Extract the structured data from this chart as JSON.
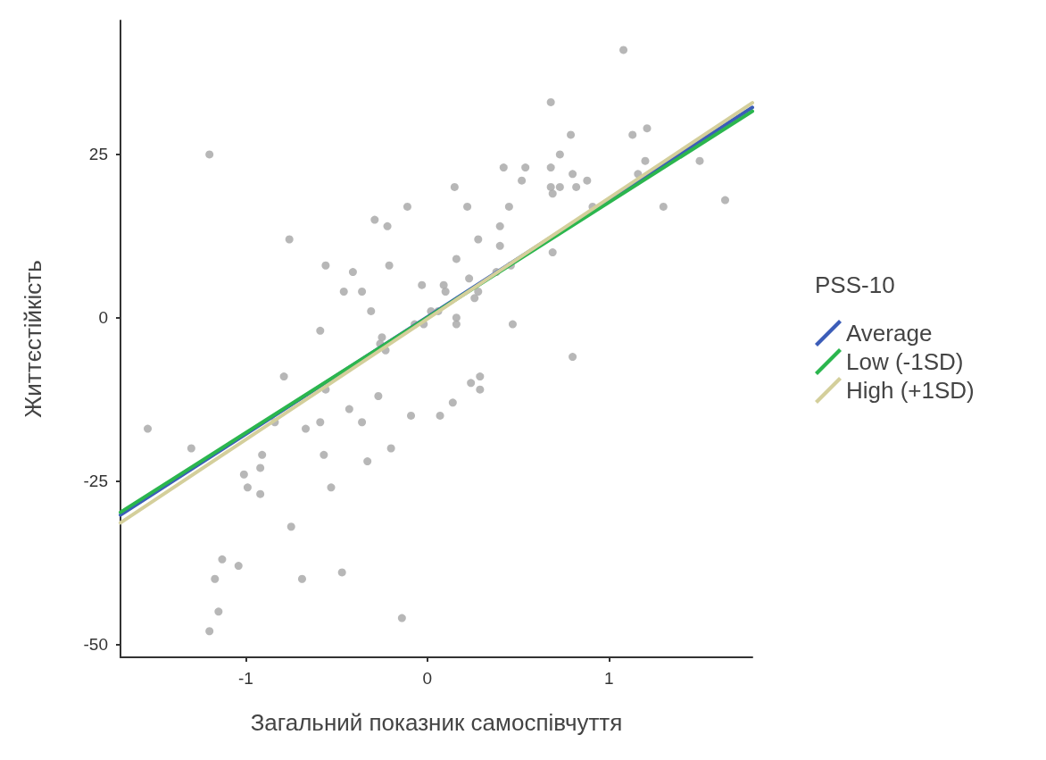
{
  "chart_data": {
    "type": "scatter",
    "xlabel": "Загальний показник самоспівчуття",
    "ylabel": "Життєстійкість",
    "legend_title": "PSS-10",
    "legend": "right",
    "grid": false,
    "xlim": [
      -1.69,
      1.79
    ],
    "ylim": [
      -52,
      45.5
    ],
    "xticks": [
      -1,
      0,
      1
    ],
    "yticks": [
      -50,
      -25,
      0,
      25
    ],
    "series": [
      {
        "color": "#aaaaaa",
        "marker": "circle",
        "x": [
          -1.54,
          -1.3,
          -1.2,
          -1.13,
          -1.04,
          -1.17,
          -1.15,
          -1.2,
          -1.01,
          -0.99,
          -0.91,
          -0.92,
          -0.92,
          -0.84,
          -0.79,
          -0.76,
          -0.75,
          -0.69,
          -0.67,
          -0.59,
          -0.59,
          -0.57,
          -0.56,
          -0.56,
          -0.53,
          -0.47,
          -0.46,
          -0.43,
          -0.41,
          -0.36,
          -0.36,
          -0.33,
          -0.31,
          -0.29,
          -0.27,
          -0.26,
          -0.25,
          -0.23,
          -0.22,
          -0.21,
          -0.2,
          -0.14,
          -0.11,
          -0.09,
          -0.07,
          -0.03,
          -0.02,
          0.02,
          0.06,
          0.07,
          0.09,
          0.1,
          0.14,
          0.15,
          0.16,
          0.16,
          0.16,
          0.22,
          0.23,
          0.24,
          0.26,
          0.28,
          0.28,
          0.29,
          0.29,
          0.38,
          0.4,
          0.4,
          0.42,
          0.45,
          0.46,
          0.47,
          0.52,
          0.54,
          0.68,
          0.68,
          0.68,
          0.69,
          0.69,
          0.73,
          0.73,
          0.79,
          0.8,
          0.8,
          0.82,
          0.88,
          0.91,
          1.08,
          1.13,
          1.16,
          1.2,
          1.21,
          1.3,
          1.5,
          1.64
        ],
        "values": [
          -17,
          -20,
          25,
          -37,
          -38,
          -40,
          -45,
          -48,
          -24,
          -26,
          -21,
          -23,
          -27,
          -16,
          -9,
          12,
          -32,
          -40,
          -17,
          -16,
          -2,
          -21,
          -11,
          8,
          -26,
          -39,
          4,
          -14,
          7,
          4,
          -16,
          -22,
          1,
          15,
          -12,
          -4,
          -3,
          -5,
          14,
          8,
          -20,
          -46,
          17,
          -15,
          -1,
          5,
          -1,
          1,
          1,
          -15,
          5,
          4,
          -13,
          20,
          9,
          0,
          -1,
          17,
          6,
          -10,
          3,
          12,
          4,
          -9,
          -11,
          7,
          14,
          11,
          23,
          17,
          8,
          -1,
          21,
          23,
          33,
          23,
          20,
          19,
          10,
          25,
          20,
          28,
          22,
          -6,
          20,
          21,
          17,
          41,
          28,
          22,
          24,
          29,
          17,
          24,
          18
        ]
      },
      {
        "type": "line",
        "name": "Average",
        "color": "#3c5db8",
        "x": [
          -1.69,
          1.79
        ],
        "values": [
          -30.2,
          32.2
        ]
      },
      {
        "type": "line",
        "name": "Low (-1SD)",
        "color": "#2bb64e",
        "x": [
          -1.69,
          1.79
        ],
        "values": [
          -29.8,
          31.6
        ]
      },
      {
        "type": "line",
        "name": "High (+1SD)",
        "color": "#d4cf9b",
        "x": [
          -1.69,
          1.79
        ],
        "values": [
          -31.4,
          32.9
        ]
      }
    ]
  }
}
